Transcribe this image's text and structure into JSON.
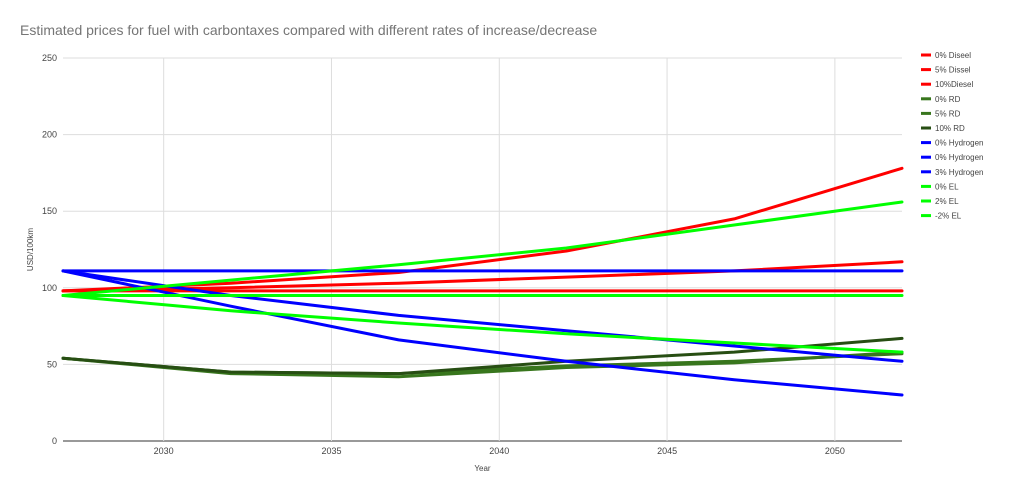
{
  "chart_data": {
    "type": "line",
    "title": "Estimated prices for fuel with carbontaxes compared with different rates of increase/decrease",
    "xlabel": "Year",
    "ylabel": "USD/100km",
    "xlim": [
      2027,
      2052
    ],
    "ylim": [
      0,
      250
    ],
    "x_ticks": [
      2030,
      2035,
      2040,
      2045,
      2050
    ],
    "y_ticks": [
      0,
      50,
      100,
      150,
      200,
      250
    ],
    "grid": true,
    "legend_position": "right",
    "series": [
      {
        "name": "0% Diseel",
        "color": "#ff0000",
        "points": [
          [
            2027,
            98
          ],
          [
            2052,
            98
          ]
        ]
      },
      {
        "name": "5% Dissel",
        "color": "#ff0000",
        "points": [
          [
            2027,
            98
          ],
          [
            2032,
            100
          ],
          [
            2037,
            103
          ],
          [
            2042,
            107
          ],
          [
            2047,
            111
          ],
          [
            2052,
            117
          ]
        ]
      },
      {
        "name": "10%Diesel",
        "color": "#ff0000",
        "points": [
          [
            2027,
            98
          ],
          [
            2032,
            103
          ],
          [
            2037,
            110
          ],
          [
            2042,
            124
          ],
          [
            2047,
            145
          ],
          [
            2052,
            178
          ]
        ]
      },
      {
        "name": "0% RD",
        "color": "#38761d",
        "points": [
          [
            2027,
            54
          ],
          [
            2032,
            45
          ],
          [
            2037,
            44
          ],
          [
            2042,
            49
          ],
          [
            2047,
            52
          ],
          [
            2052,
            57
          ]
        ]
      },
      {
        "name": "5% RD",
        "color": "#38761d",
        "points": [
          [
            2027,
            54
          ],
          [
            2032,
            44
          ],
          [
            2037,
            42
          ],
          [
            2042,
            48
          ],
          [
            2047,
            51
          ],
          [
            2052,
            58
          ]
        ]
      },
      {
        "name": "10% RD",
        "color": "#274e13",
        "points": [
          [
            2027,
            54
          ],
          [
            2032,
            45
          ],
          [
            2037,
            44
          ],
          [
            2042,
            52
          ],
          [
            2047,
            58
          ],
          [
            2052,
            67
          ]
        ]
      },
      {
        "name": "0% Hydrogen",
        "color": "#0000ff",
        "points": [
          [
            2027,
            111
          ],
          [
            2052,
            111
          ]
        ]
      },
      {
        "name": "0% Hydrogen",
        "color": "#0000ff",
        "points": [
          [
            2027,
            111
          ],
          [
            2032,
            95
          ],
          [
            2037,
            82
          ],
          [
            2042,
            72
          ],
          [
            2047,
            62
          ],
          [
            2052,
            52
          ]
        ]
      },
      {
        "name": "3% Hydrogen",
        "color": "#0000ff",
        "points": [
          [
            2027,
            111
          ],
          [
            2032,
            88
          ],
          [
            2037,
            66
          ],
          [
            2042,
            52
          ],
          [
            2047,
            40
          ],
          [
            2052,
            30
          ]
        ]
      },
      {
        "name": "0% EL",
        "color": "#00ff00",
        "points": [
          [
            2027,
            95
          ],
          [
            2052,
            95
          ]
        ]
      },
      {
        "name": "2% EL",
        "color": "#00ff00",
        "points": [
          [
            2027,
            95
          ],
          [
            2032,
            105
          ],
          [
            2037,
            115
          ],
          [
            2042,
            126
          ],
          [
            2047,
            141
          ],
          [
            2052,
            156
          ]
        ]
      },
      {
        "name": "-2% EL",
        "color": "#00ff00",
        "points": [
          [
            2027,
            95
          ],
          [
            2032,
            85
          ],
          [
            2037,
            77
          ],
          [
            2042,
            70
          ],
          [
            2047,
            64
          ],
          [
            2052,
            58
          ]
        ]
      }
    ]
  }
}
